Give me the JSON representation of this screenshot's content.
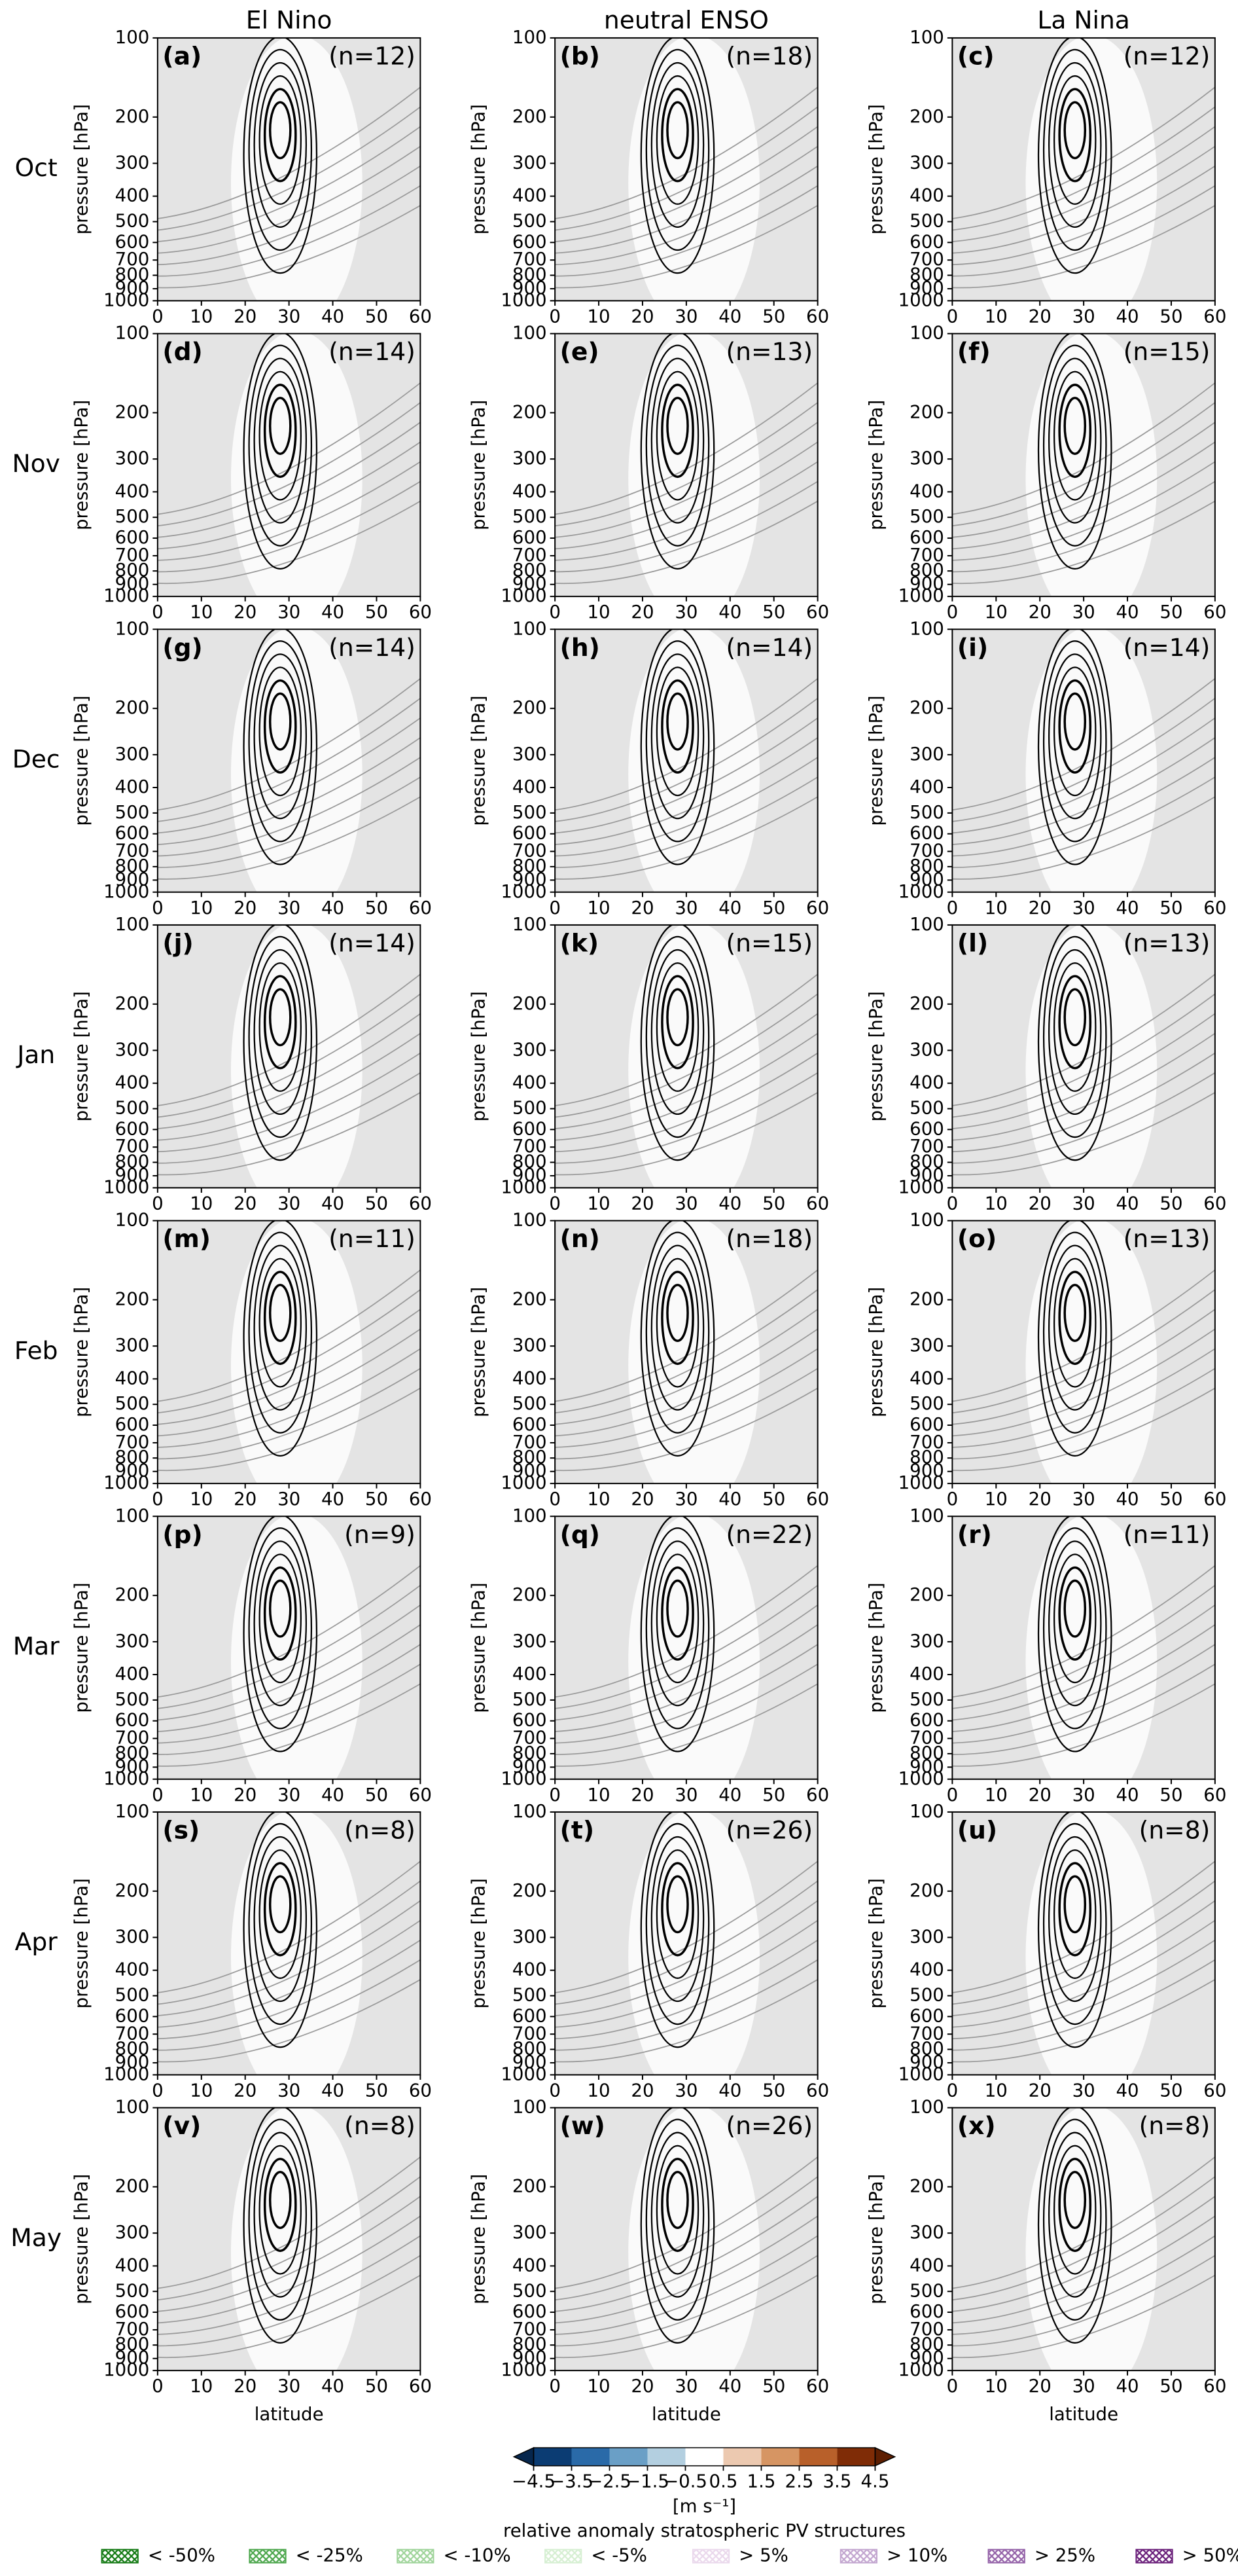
{
  "chart_data": {
    "type": "contour",
    "column_titles": [
      "El Nino",
      "neutral ENSO",
      "La Nina"
    ],
    "row_labels": [
      "Oct",
      "Nov",
      "Dec",
      "Jan",
      "Feb",
      "Mar",
      "Apr",
      "May"
    ],
    "panels": [
      {
        "label": "(a)",
        "n_label": "(n=12)"
      },
      {
        "label": "(b)",
        "n_label": "(n=18)"
      },
      {
        "label": "(c)",
        "n_label": "(n=12)"
      },
      {
        "label": "(d)",
        "n_label": "(n=14)"
      },
      {
        "label": "(e)",
        "n_label": "(n=13)"
      },
      {
        "label": "(f)",
        "n_label": "(n=15)"
      },
      {
        "label": "(g)",
        "n_label": "(n=14)"
      },
      {
        "label": "(h)",
        "n_label": "(n=14)"
      },
      {
        "label": "(i)",
        "n_label": "(n=14)"
      },
      {
        "label": "(j)",
        "n_label": "(n=14)"
      },
      {
        "label": "(k)",
        "n_label": "(n=15)"
      },
      {
        "label": "(l)",
        "n_label": "(n=13)"
      },
      {
        "label": "(m)",
        "n_label": "(n=11)"
      },
      {
        "label": "(n)",
        "n_label": "(n=18)"
      },
      {
        "label": "(o)",
        "n_label": "(n=13)"
      },
      {
        "label": "(p)",
        "n_label": "(n=9)"
      },
      {
        "label": "(q)",
        "n_label": "(n=22)"
      },
      {
        "label": "(r)",
        "n_label": "(n=11)"
      },
      {
        "label": "(s)",
        "n_label": "(n=8)"
      },
      {
        "label": "(t)",
        "n_label": "(n=26)"
      },
      {
        "label": "(u)",
        "n_label": "(n=8)"
      },
      {
        "label": "(v)",
        "n_label": "(n=8)"
      },
      {
        "label": "(w)",
        "n_label": "(n=26)"
      },
      {
        "label": "(x)",
        "n_label": "(n=8)"
      }
    ],
    "xlabel": "latitude",
    "ylabel": "pressure [hPa]",
    "xlim": [
      0,
      60
    ],
    "xticks": [
      0,
      10,
      20,
      30,
      40,
      50,
      60
    ],
    "ylim": [
      1000,
      100
    ],
    "yticks": [
      100,
      200,
      300,
      400,
      500,
      600,
      700,
      800,
      900,
      1000
    ],
    "log_y": true,
    "colorbar": {
      "label": "[m s⁻¹]",
      "ticks": [
        {
          "value": -4.5,
          "label": "−4.5"
        },
        {
          "value": -3.5,
          "label": "−3.5"
        },
        {
          "value": -2.5,
          "label": "−2.5"
        },
        {
          "value": -1.5,
          "label": "−1.5"
        },
        {
          "value": -0.5,
          "label": "−0.5"
        },
        0.5,
        1.5,
        2.5,
        3.5,
        4.5
      ],
      "colors": [
        "#0b3c73",
        "#2a6aa8",
        "#6a9fc6",
        "#b3cfe0",
        "#ffffff",
        "#ecc9b0",
        "#d69563",
        "#b8602a",
        "#7f2c06"
      ],
      "extend_colors": [
        "#06264d",
        "#5e1f02"
      ]
    },
    "hatch_title": "relative anomaly stratospheric PV structures",
    "hatch_legend": [
      {
        "label": "< -50%",
        "color": "#137a13"
      },
      {
        "label": "< -25%",
        "color": "#4ca64c"
      },
      {
        "label": "< -10%",
        "color": "#9fd49a"
      },
      {
        "label": "< -5%",
        "color": "#d6efd2"
      },
      {
        "label": "> 5%",
        "color": "#ead8ec"
      },
      {
        "label": "> 10%",
        "color": "#c2a5cf"
      },
      {
        "label": "> 25%",
        "color": "#9462a8"
      },
      {
        "label": "> 50%",
        "color": "#6a1f7a"
      }
    ]
  }
}
